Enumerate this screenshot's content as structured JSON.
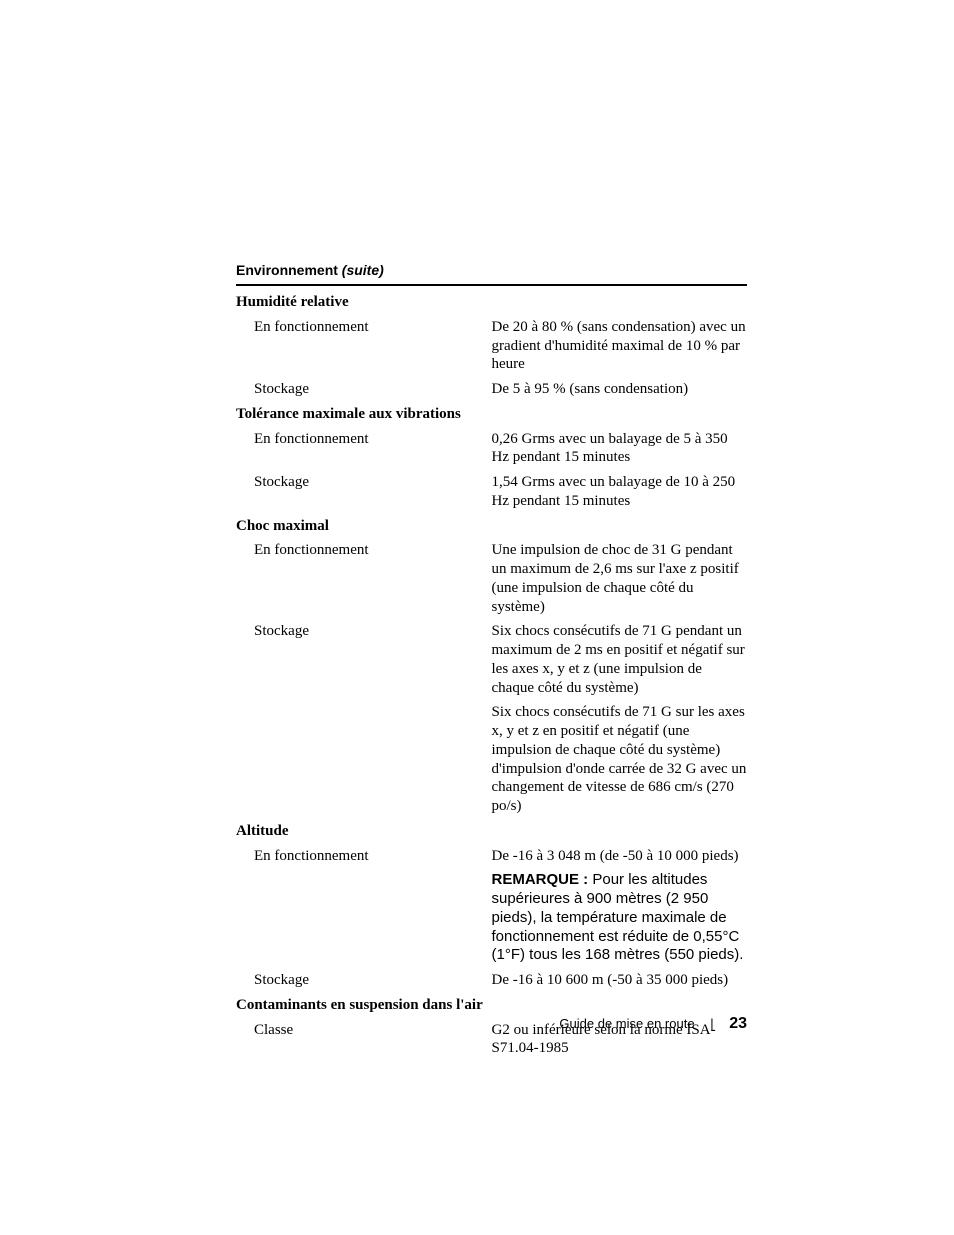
{
  "section": {
    "title_main": "Environnement ",
    "title_suite": "(suite)"
  },
  "groups": {
    "humidity": {
      "header": "Humidité relative",
      "operating_label": "En fonctionnement",
      "operating_value": "De 20 à 80 % (sans condensation) avec un gradient d'humidité maximal de 10 % par heure",
      "storage_label": "Stockage",
      "storage_value": "De 5 à 95 % (sans condensation)"
    },
    "vibration": {
      "header": "Tolérance maximale aux vibrations",
      "operating_label": "En fonctionnement",
      "operating_value": "0,26 Grms avec un balayage de 5 à 350 Hz pendant 15 minutes",
      "storage_label": "Stockage",
      "storage_value": "1,54 Grms avec un balayage de 10 à 250 Hz pendant 15 minutes"
    },
    "shock": {
      "header": "Choc maximal",
      "operating_label": "En fonctionnement",
      "operating_value": "Une impulsion de choc de 31 G pendant un maximum de 2,6 ms sur l'axe z positif (une impulsion de chaque côté du système)",
      "storage_label": "Stockage",
      "storage_value1": "Six chocs consécutifs de 71 G pendant un maximum de 2 ms en positif et négatif sur les axes x, y et z (une impulsion de chaque côté du système)",
      "storage_value2": "Six chocs consécutifs de 71 G sur les axes x, y et z en positif et négatif (une impulsion de chaque côté du système) d'impulsion d'onde carrée de 32 G avec un changement de vitesse de 686 cm/s (270 po/s)"
    },
    "altitude": {
      "header": "Altitude",
      "operating_label": "En fonctionnement",
      "operating_value": "De -16 à 3 048 m (de -50 à 10 000 pieds)",
      "note_label": "REMARQUE : ",
      "note_body": "Pour les altitudes supérieures à 900 mètres (2 950 pieds), la température maximale de fonctionnement est réduite de 0,55°C (1°F) tous les 168 mètres (550 pieds).",
      "storage_label": "Stockage",
      "storage_value": "De -16 à 10 600 m (-50 à 35 000 pieds)"
    },
    "contaminants": {
      "header": "Contaminants en suspension dans l'air",
      "class_label": "Classe",
      "class_value": "G2 ou inférieure selon la norme ISA-S71.04-1985"
    }
  },
  "footer": {
    "doc_title": "Guide de mise en route",
    "page_number": "23"
  }
}
